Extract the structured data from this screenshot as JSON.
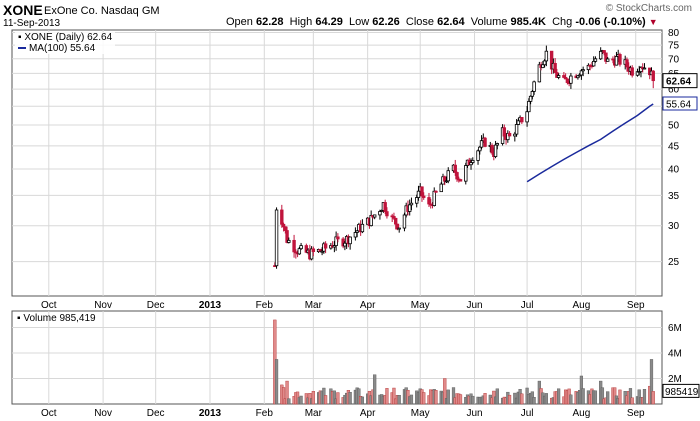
{
  "header": {
    "ticker": "XONE",
    "company": "ExOne Co. Nasdaq GM",
    "date": "11-Sep-2013",
    "brand": "© StockCharts.com",
    "quote": {
      "open_label": "Open",
      "open": "62.28",
      "high_label": "High",
      "high": "64.29",
      "low_label": "Low",
      "low": "62.26",
      "close_label": "Close",
      "close": "62.64",
      "volume_label": "Volume",
      "volume": "985.4K",
      "chg_label": "Chg",
      "chg": "-0.06 (-0.10%)"
    }
  },
  "colors": {
    "up": "#000000",
    "down": "#c0143c",
    "ma": "#1a2a9c",
    "grid": "#d8d8d8",
    "vol_up": "#8a8a8a",
    "vol_down": "#e08a8a"
  },
  "chart_data": [
    {
      "type": "line",
      "panel": "price",
      "title": "XONE (Daily) 62.64",
      "legend": [
        "XONE (Daily) 62.64",
        "MA(100) 55.64"
      ],
      "legend_placement": "top-left",
      "y_scale": "log",
      "y_ticks": [
        25,
        30,
        35,
        40,
        45,
        50,
        55,
        60,
        65,
        70,
        75,
        80
      ],
      "ylim": [
        21,
        81
      ],
      "x_ticks": [
        "Oct",
        "Nov",
        "Dec",
        "2013",
        "Feb",
        "Mar",
        "Apr",
        "May",
        "Jun",
        "Jul",
        "Aug",
        "Sep"
      ],
      "last_price_label": "62.64",
      "ma_label": "55.64",
      "series": [
        {
          "name": "XONE (Daily) 62.64",
          "points": [
            [
              "Feb 7",
              24.5
            ],
            [
              "Feb 8",
              33.0
            ],
            [
              "Feb 11",
              31.0
            ],
            [
              "Feb 14",
              28.0
            ],
            [
              "Feb 20",
              26.5
            ],
            [
              "Feb 27",
              26.0
            ],
            [
              "Mar 6",
              26.5
            ],
            [
              "Mar 13",
              27.5
            ],
            [
              "Mar 20",
              28.0
            ],
            [
              "Mar 27",
              29.5
            ],
            [
              "Apr 3",
              31.0
            ],
            [
              "Apr 10",
              33.5
            ],
            [
              "Apr 15",
              31.0
            ],
            [
              "Apr 19",
              30.0
            ],
            [
              "Apr 24",
              33.0
            ],
            [
              "May 1",
              35.5
            ],
            [
              "May 6",
              33.0
            ],
            [
              "May 13",
              37.0
            ],
            [
              "May 20",
              40.0
            ],
            [
              "May 24",
              38.0
            ],
            [
              "May 31",
              43.0
            ],
            [
              "Jun 7",
              46.0
            ],
            [
              "Jun 12",
              43.5
            ],
            [
              "Jun 17",
              48.0
            ],
            [
              "Jun 21",
              47.0
            ],
            [
              "Jun 26",
              50.0
            ],
            [
              "Jul 1",
              54.0
            ],
            [
              "Jul 5",
              62.0
            ],
            [
              "Jul 9",
              69.0
            ],
            [
              "Jul 12",
              72.0
            ],
            [
              "Jul 17",
              65.0
            ],
            [
              "Jul 22",
              62.0
            ],
            [
              "Jul 26",
              64.0
            ],
            [
              "Jul 31",
              66.0
            ],
            [
              "Aug 5",
              67.0
            ],
            [
              "Aug 9",
              70.0
            ],
            [
              "Aug 13",
              72.0
            ],
            [
              "Aug 16",
              69.0
            ],
            [
              "Aug 21",
              70.0
            ],
            [
              "Aug 26",
              68.0
            ],
            [
              "Aug 30",
              66.0
            ],
            [
              "Sep 4",
              68.0
            ],
            [
              "Sep 9",
              66.0
            ],
            [
              "Sep 11",
              62.64
            ]
          ]
        },
        {
          "name": "MA(100) 55.64",
          "points": [
            [
              "Jul 1",
              37.5
            ],
            [
              "Jul 8",
              39.0
            ],
            [
              "Jul 15",
              40.5
            ],
            [
              "Jul 22",
              42.0
            ],
            [
              "Jul 29",
              43.5
            ],
            [
              "Aug 5",
              45.0
            ],
            [
              "Aug 12",
              46.5
            ],
            [
              "Aug 19",
              48.5
            ],
            [
              "Aug 26",
              50.5
            ],
            [
              "Sep 2",
              52.5
            ],
            [
              "Sep 9",
              55.0
            ],
            [
              "Sep 11",
              55.64
            ]
          ]
        }
      ]
    },
    {
      "type": "bar",
      "panel": "volume",
      "title": "Volume 985,419",
      "legend": [
        "Volume 985,419"
      ],
      "y_ticks_labels": [
        "2M",
        "4M",
        "6M"
      ],
      "y_ticks": [
        2,
        4,
        6
      ],
      "ylim": [
        0,
        7.3
      ],
      "unit": "millions",
      "last_volume_label": "985419",
      "x_ticks": [
        "Oct",
        "Nov",
        "Dec",
        "2013",
        "Feb",
        "Mar",
        "Apr",
        "May",
        "Jun",
        "Jul",
        "Aug",
        "Sep"
      ],
      "categories": [
        "Feb 7",
        "Feb 8",
        "Feb 11",
        "Feb 14",
        "Mar 1",
        "Mar 15",
        "Apr 1",
        "Apr 5",
        "Apr 15",
        "May 1",
        "May 15",
        "May 30",
        "Jun 14",
        "Jun 28",
        "Jul 8",
        "Jul 19",
        "Aug 1",
        "Aug 12",
        "Aug 26",
        "Sep 9",
        "Sep 10",
        "Sep 11"
      ],
      "values": [
        6.6,
        3.5,
        1.5,
        1.8,
        1.0,
        0.9,
        0.8,
        2.3,
        0.9,
        1.2,
        2.0,
        0.8,
        1.2,
        0.8,
        1.8,
        1.2,
        2.2,
        1.8,
        1.0,
        1.4,
        3.5,
        0.99
      ]
    }
  ]
}
